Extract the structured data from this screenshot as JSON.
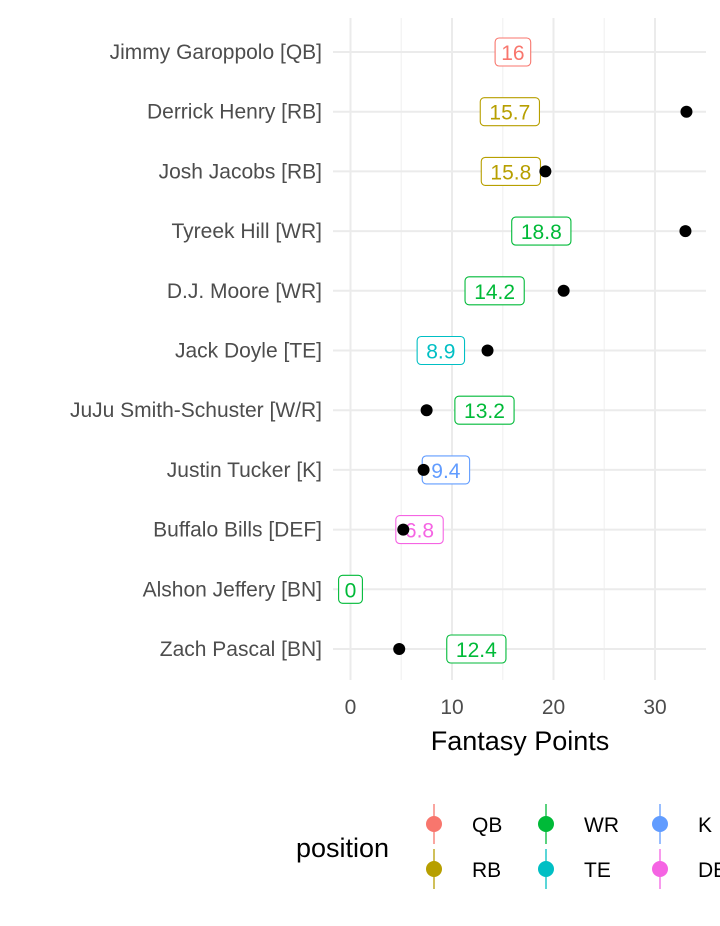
{
  "chart_data": {
    "type": "scatter",
    "xlabel": "Fantasy Points",
    "ylabel": "",
    "xlim": [
      -1.2,
      35
    ],
    "x_ticks": [
      0,
      10,
      20,
      30
    ],
    "grid": true,
    "legend_title": "position",
    "legend_position": "bottom",
    "players": [
      {
        "name": "Jimmy Garoppolo [QB]",
        "position": "QB",
        "projected": 16,
        "projected_label": "16",
        "actual": null
      },
      {
        "name": "Derrick Henry [RB]",
        "position": "RB",
        "projected": 15.7,
        "projected_label": "15.7",
        "actual": 33.1
      },
      {
        "name": "Josh Jacobs [RB]",
        "position": "RB",
        "projected": 15.8,
        "projected_label": "15.8",
        "actual": 19.2
      },
      {
        "name": "Tyreek Hill [WR]",
        "position": "WR",
        "projected": 18.8,
        "projected_label": "18.8",
        "actual": 33
      },
      {
        "name": "D.J. Moore [WR]",
        "position": "WR",
        "projected": 14.2,
        "projected_label": "14.2",
        "actual": 21
      },
      {
        "name": "Jack Doyle [TE]",
        "position": "TE",
        "projected": 8.9,
        "projected_label": "8.9",
        "actual": 13.5
      },
      {
        "name": "JuJu Smith-Schuster [W/R]",
        "position": "WR",
        "projected": 13.2,
        "projected_label": "13.2",
        "actual": 7.5
      },
      {
        "name": "Justin Tucker [K]",
        "position": "K",
        "projected": 9.4,
        "projected_label": "9.4",
        "actual": 7.2
      },
      {
        "name": "Buffalo Bills [DEF]",
        "position": "DEF",
        "projected": 6.8,
        "projected_label": "6.8",
        "actual": 5.2
      },
      {
        "name": "Alshon Jeffery [BN]",
        "position": "WR",
        "projected": 0,
        "projected_label": "0",
        "actual": null
      },
      {
        "name": "Zach Pascal [BN]",
        "position": "WR",
        "projected": 12.4,
        "projected_label": "12.4",
        "actual": 4.8
      }
    ],
    "legend": [
      {
        "label": "QB",
        "color": "#F8766D"
      },
      {
        "label": "WR",
        "color": "#00BA38"
      },
      {
        "label": "K",
        "color": "#619CFF"
      },
      {
        "label": "RB",
        "color": "#B79F00"
      },
      {
        "label": "TE",
        "color": "#00BFC4"
      },
      {
        "label": "DEF",
        "color": "#F564E3"
      }
    ],
    "colors": {
      "QB": "#F8766D",
      "RB": "#B79F00",
      "WR": "#00BA38",
      "TE": "#00BFC4",
      "K": "#619CFF",
      "DEF": "#F564E3",
      "actual_point": "#000000"
    }
  }
}
